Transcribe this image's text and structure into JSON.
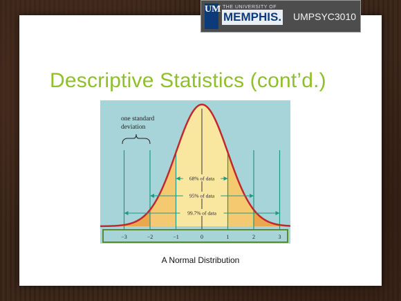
{
  "header": {
    "logo_letters": "UM",
    "logo_small": "THE UNIVERSITY OF",
    "logo_name": "MEMPHIS.",
    "course_code": "UMPSYC3010"
  },
  "slide": {
    "title": "Descriptive Statistics (cont’d.)",
    "caption": "A Normal Distribution"
  },
  "figure": {
    "annotation_line1": "one standard",
    "annotation_line2": "deviation",
    "bands": [
      {
        "label": "68% of data",
        "from": -1,
        "to": 1
      },
      {
        "label": "95% of data",
        "from": -2,
        "to": 2
      },
      {
        "label": "99.7% of data",
        "from": -3,
        "to": 3
      }
    ],
    "ticks": [
      "−3",
      "−2",
      "−1",
      "0",
      "1",
      "2",
      "3"
    ],
    "colors": {
      "background": "#a6d4d8",
      "curve": "#c0282d",
      "inner_fill": "#f9e7a0",
      "mid_fill": "#f5c970",
      "outer_fill": "#eea64a",
      "lines": "#1f9a82"
    }
  }
}
